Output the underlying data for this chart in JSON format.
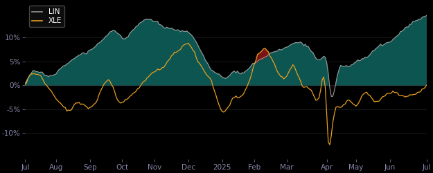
{
  "background_color": "#000000",
  "plot_bg_color": "#000000",
  "teal_fill_color": "#0d5550",
  "red_fill_color": "#7a1515",
  "lin_line_color": "#999999",
  "xle_line_color": "#e8a020",
  "legend_bg_color": "#111111",
  "legend_edge_color": "#555555",
  "tick_color": "#8888aa",
  "ylim": [
    -0.155,
    0.175
  ],
  "yticks": [
    -0.1,
    -0.05,
    0.0,
    0.05,
    0.1
  ],
  "ytick_labels": [
    "-10%",
    "-5%",
    "0%",
    "5%",
    "10%"
  ],
  "xlabel_months": [
    "Jul",
    "Aug",
    "Sep",
    "Oct",
    "Nov",
    "Dec",
    "2025",
    "Feb",
    "Mar",
    "Apr",
    "May",
    "Jun",
    "Jul"
  ],
  "n_points": 262
}
